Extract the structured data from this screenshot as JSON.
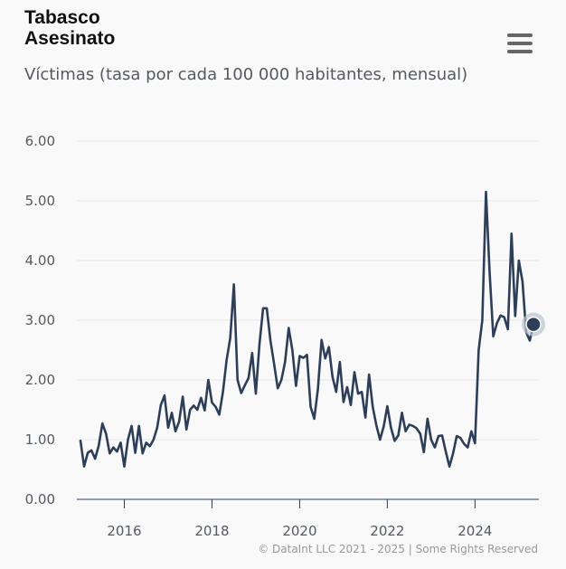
{
  "header": {
    "title_line1": "Tabasco",
    "title_line2": "Asesinato",
    "subtitle": "Víctimas (tasa por cada 100 000 habitantes, mensual)"
  },
  "menu": {
    "icon": "hamburger-menu-icon"
  },
  "credits": "© DataInt LLC 2021 - 2025 | Some Rights Reserved",
  "colors": {
    "line": "#2c3e5a",
    "grid": "#e6e6e6",
    "marker_halo": "#b9c3d0"
  },
  "chart_data": {
    "type": "line",
    "title": "Tabasco Asesinato",
    "subtitle": "Víctimas (tasa por cada 100 000 habitantes, mensual)",
    "xlabel": "",
    "ylabel": "",
    "x_start": "2015-01",
    "x_frequency": "monthly",
    "xlim": [
      "2015-01",
      "2025-06"
    ],
    "ylim": [
      0,
      6
    ],
    "y_ticks": [
      "0.00",
      "1.00",
      "2.00",
      "3.00",
      "4.00",
      "5.00",
      "6.00"
    ],
    "x_ticks": [
      "2016",
      "2018",
      "2020",
      "2022",
      "2024"
    ],
    "grid": true,
    "legend": "none",
    "series": [
      {
        "values": [
          0.98,
          0.55,
          0.78,
          0.82,
          0.68,
          0.9,
          1.27,
          1.1,
          0.77,
          0.87,
          0.8,
          0.95,
          0.55,
          1.0,
          1.23,
          0.78,
          1.23,
          0.77,
          0.95,
          0.89,
          1.0,
          1.2,
          1.58,
          1.74,
          1.2,
          1.45,
          1.14,
          1.3,
          1.72,
          1.17,
          1.5,
          1.57,
          1.5,
          1.7,
          1.49,
          2.0,
          1.62,
          1.55,
          1.42,
          1.8,
          2.33,
          2.7,
          3.6,
          2.0,
          1.78,
          1.91,
          2.03,
          2.45,
          1.77,
          2.6,
          3.2,
          3.2,
          2.66,
          2.27,
          1.86,
          2.0,
          2.3,
          2.87,
          2.5,
          1.9,
          2.4,
          2.37,
          2.42,
          1.55,
          1.35,
          1.85,
          2.67,
          2.36,
          2.55,
          2.05,
          1.8,
          2.3,
          1.63,
          1.88,
          1.58,
          2.13,
          1.77,
          1.8,
          1.37,
          2.09,
          1.55,
          1.24,
          1.0,
          1.22,
          1.56,
          1.2,
          0.98,
          1.07,
          1.45,
          1.14,
          1.25,
          1.23,
          1.19,
          1.1,
          0.79,
          1.35,
          1.0,
          0.87,
          1.06,
          1.07,
          0.8,
          0.55,
          0.77,
          1.06,
          1.03,
          0.93,
          0.87,
          1.14,
          0.94,
          2.5,
          3.0,
          5.15,
          3.8,
          2.73,
          2.95,
          3.08,
          3.05,
          2.85,
          4.45,
          3.07,
          4.0,
          3.65,
          2.8,
          2.66,
          2.93
        ]
      }
    ],
    "highlighted_point": {
      "x": "2025-05",
      "y": 2.93
    }
  }
}
